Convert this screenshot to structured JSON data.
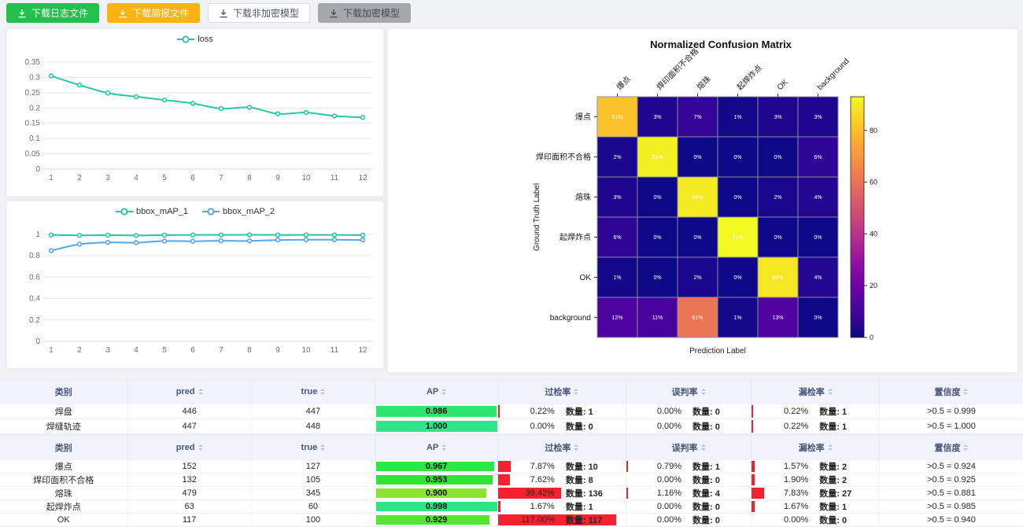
{
  "toolbar": {
    "buttons": [
      {
        "label": "下载日志文件",
        "variant": "success"
      },
      {
        "label": "下载简报文件",
        "variant": "warning"
      },
      {
        "label": "下载非加密模型",
        "variant": "plain"
      },
      {
        "label": "下载加密模型",
        "variant": "gray"
      }
    ]
  },
  "colors": {
    "teal": "#2bc7a2",
    "blue": "#56a8e8",
    "red_bar": "#f5222d",
    "grid_line": "#e4e7ee",
    "tick_text": "#6E7079"
  },
  "chart_data": [
    {
      "id": "loss",
      "type": "line",
      "legend_position": "top",
      "x": [
        1,
        2,
        3,
        4,
        5,
        6,
        7,
        8,
        9,
        10,
        11,
        12
      ],
      "series": [
        {
          "name": "loss",
          "color": "#2bc7a2",
          "values": [
            0.305,
            0.275,
            0.249,
            0.237,
            0.226,
            0.215,
            0.198,
            0.202,
            0.181,
            0.185,
            0.174,
            0.169
          ]
        }
      ],
      "ylim": [
        0,
        0.35
      ],
      "yticks": [
        0,
        0.05,
        0.1,
        0.15,
        0.2,
        0.25,
        0.3,
        0.35
      ],
      "grid": true
    },
    {
      "id": "map",
      "type": "line",
      "legend_position": "top",
      "x": [
        1,
        2,
        3,
        4,
        5,
        6,
        7,
        8,
        9,
        10,
        11,
        12
      ],
      "series": [
        {
          "name": "bbox_mAP_1",
          "color": "#2bc7a2",
          "values": [
            0.995,
            0.991,
            0.993,
            0.99,
            0.994,
            0.995,
            0.995,
            0.996,
            0.995,
            0.995,
            0.995,
            0.994
          ]
        },
        {
          "name": "bbox_mAP_2",
          "color": "#56a8e8",
          "values": [
            0.848,
            0.908,
            0.925,
            0.923,
            0.938,
            0.936,
            0.94,
            0.939,
            0.948,
            0.95,
            0.95,
            0.948
          ]
        }
      ],
      "ylim": [
        0,
        1
      ],
      "yticks": [
        0,
        0.2,
        0.4,
        0.6,
        0.8,
        1
      ],
      "grid": true
    },
    {
      "id": "confusion",
      "type": "heatmap",
      "title": "Normalized Confusion Matrix",
      "xlabel": "Prediction Label",
      "ylabel": "Ground Truth Label",
      "labels": [
        "爆点",
        "焊印面积不合格",
        "熔珠",
        "起焊炸点",
        "OK",
        "background"
      ],
      "unit": "%",
      "vmin": 0,
      "vmax": 93,
      "colorbar_ticks": [
        0,
        20,
        40,
        60,
        80
      ],
      "colormap": "plasma",
      "matrix": [
        [
          81,
          3,
          7,
          1,
          3,
          3
        ],
        [
          2,
          91,
          0,
          0,
          0,
          6
        ],
        [
          3,
          0,
          90,
          0,
          2,
          4
        ],
        [
          6,
          0,
          0,
          93,
          0,
          0
        ],
        [
          1,
          0,
          2,
          0,
          89,
          4
        ],
        [
          12,
          11,
          61,
          1,
          13,
          0
        ]
      ]
    }
  ],
  "tables": [
    {
      "count_label": "数量:",
      "columns": [
        {
          "label": "类别",
          "sortable": false
        },
        {
          "label": "pred",
          "sortable": true
        },
        {
          "label": "true",
          "sortable": true
        },
        {
          "label": "AP",
          "sortable": true
        },
        {
          "label": "过检率",
          "sortable": true
        },
        {
          "label": "误判率",
          "sortable": true
        },
        {
          "label": "漏检率",
          "sortable": true
        },
        {
          "label": "置信度",
          "sortable": true
        }
      ],
      "rows": [
        {
          "category": "焊盘",
          "pred": "446",
          "true": "447",
          "ap": "0.986",
          "over_rate": {
            "pct": "0.22%",
            "count": "1"
          },
          "misjudge_rate": {
            "pct": "0.00%",
            "count": "0"
          },
          "miss_rate": {
            "pct": "0.22%",
            "count": "1"
          },
          "confidence": ">0.5 = 0.999"
        },
        {
          "category": "焊缝轨迹",
          "pred": "447",
          "true": "448",
          "ap": "1.000",
          "over_rate": {
            "pct": "0.00%",
            "count": "0"
          },
          "misjudge_rate": {
            "pct": "0.00%",
            "count": "0"
          },
          "miss_rate": {
            "pct": "0.22%",
            "count": "1"
          },
          "confidence": ">0.5 = 1.000"
        }
      ]
    },
    {
      "count_label": "数量:",
      "columns": [
        {
          "label": "类别",
          "sortable": false
        },
        {
          "label": "pred",
          "sortable": true
        },
        {
          "label": "true",
          "sortable": true
        },
        {
          "label": "AP",
          "sortable": true
        },
        {
          "label": "过检率",
          "sortable": true
        },
        {
          "label": "误判率",
          "sortable": true
        },
        {
          "label": "漏检率",
          "sortable": true
        },
        {
          "label": "置信度",
          "sortable": true
        }
      ],
      "rows": [
        {
          "category": "爆点",
          "pred": "152",
          "true": "127",
          "ap": "0.967",
          "over_rate": {
            "pct": "7.87%",
            "count": "10"
          },
          "misjudge_rate": {
            "pct": "0.79%",
            "count": "1"
          },
          "miss_rate": {
            "pct": "1.57%",
            "count": "2"
          },
          "confidence": ">0.5 = 0.924"
        },
        {
          "category": "焊印面积不合格",
          "pred": "132",
          "true": "105",
          "ap": "0.953",
          "over_rate": {
            "pct": "7.62%",
            "count": "8"
          },
          "misjudge_rate": {
            "pct": "0.00%",
            "count": "0"
          },
          "miss_rate": {
            "pct": "1.90%",
            "count": "2"
          },
          "confidence": ">0.5 = 0.925"
        },
        {
          "category": "熔珠",
          "pred": "479",
          "true": "345",
          "ap": "0.900",
          "over_rate": {
            "pct": "39.42%",
            "count": "136"
          },
          "misjudge_rate": {
            "pct": "1.16%",
            "count": "4"
          },
          "miss_rate": {
            "pct": "7.83%",
            "count": "27"
          },
          "confidence": ">0.5 = 0.881"
        },
        {
          "category": "起焊炸点",
          "pred": "63",
          "true": "60",
          "ap": "0.998",
          "over_rate": {
            "pct": "1.67%",
            "count": "1"
          },
          "misjudge_rate": {
            "pct": "0.00%",
            "count": "0"
          },
          "miss_rate": {
            "pct": "1.67%",
            "count": "1"
          },
          "confidence": ">0.5 = 0.985"
        },
        {
          "category": "OK",
          "pred": "117",
          "true": "100",
          "ap": "0.929",
          "over_rate": {
            "pct": "117.00%",
            "count": "117"
          },
          "misjudge_rate": {
            "pct": "0.00%",
            "count": "0"
          },
          "miss_rate": {
            "pct": "0.00%",
            "count": "0"
          },
          "confidence": ">0.5 = 0.940"
        }
      ]
    }
  ]
}
